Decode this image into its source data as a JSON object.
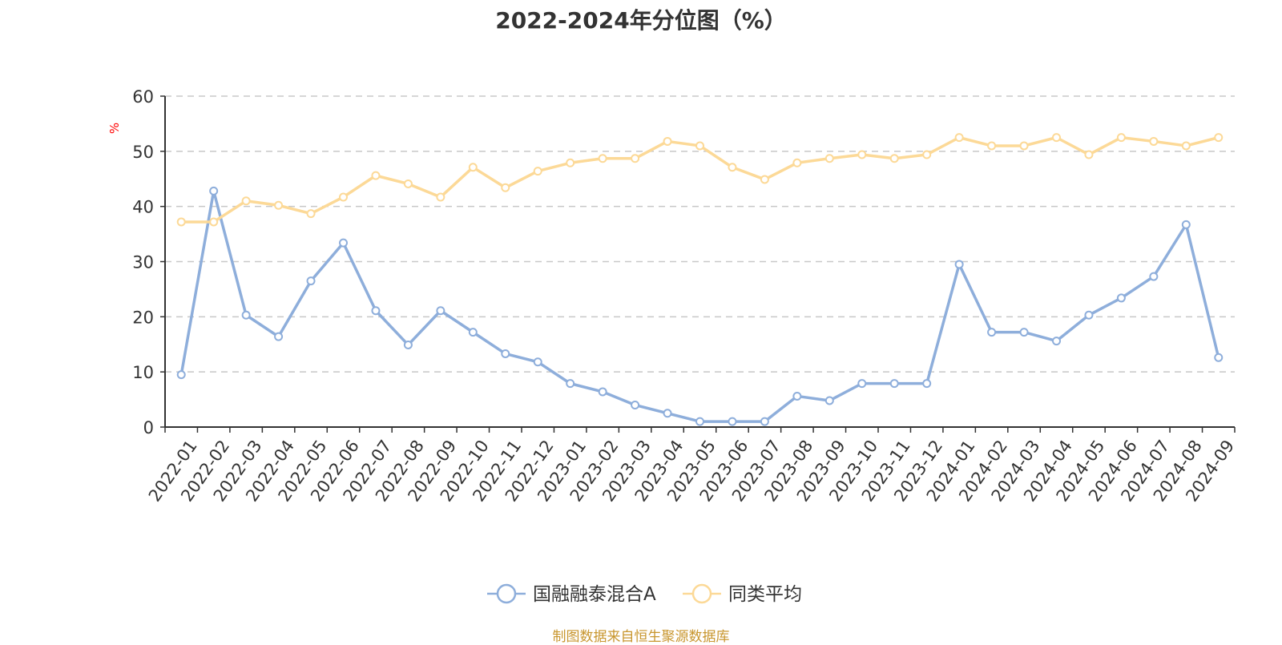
{
  "title": "2022-2024年分位图（%）",
  "source": "制图数据来自恒生聚源数据库",
  "chart_data": {
    "type": "line",
    "title": "2022-2024年分位图（%）",
    "ylabel": "%",
    "xlabel": "",
    "ylim": [
      0,
      60
    ],
    "yticks": [
      0,
      10,
      20,
      30,
      40,
      50,
      60
    ],
    "grid": true,
    "legend_position": "bottom-center",
    "categories": [
      "2022-01",
      "2022-02",
      "2022-03",
      "2022-04",
      "2022-05",
      "2022-06",
      "2022-07",
      "2022-08",
      "2022-09",
      "2022-10",
      "2022-11",
      "2022-12",
      "2023-01",
      "2023-02",
      "2023-03",
      "2023-04",
      "2023-05",
      "2023-06",
      "2023-07",
      "2023-08",
      "2023-09",
      "2023-10",
      "2023-11",
      "2023-12",
      "2024-01",
      "2024-02",
      "2024-03",
      "2024-04",
      "2024-05",
      "2024-06",
      "2024-07",
      "2024-08",
      "2024-09"
    ],
    "series": [
      {
        "name": "国融融泰混合A",
        "color": "#8eaedb",
        "values": [
          9.5,
          42.8,
          20.3,
          16.4,
          26.5,
          33.4,
          21.1,
          14.9,
          21.1,
          17.2,
          13.3,
          11.8,
          7.9,
          6.4,
          4.0,
          2.5,
          1.0,
          1.0,
          1.0,
          5.6,
          4.8,
          7.9,
          7.9,
          7.9,
          29.5,
          17.2,
          17.2,
          15.6,
          20.3,
          23.4,
          27.3,
          36.7,
          12.6
        ]
      },
      {
        "name": "同类平均",
        "color": "#fcd997",
        "values": [
          37.2,
          37.2,
          41.0,
          40.2,
          38.7,
          41.7,
          45.6,
          44.1,
          41.7,
          47.1,
          43.4,
          46.4,
          47.9,
          48.7,
          48.7,
          51.8,
          51.0,
          47.1,
          44.9,
          47.9,
          48.7,
          49.4,
          48.7,
          49.4,
          52.5,
          51.0,
          51.0,
          52.5,
          49.4,
          52.5,
          51.8,
          51.0,
          52.5
        ]
      }
    ]
  }
}
